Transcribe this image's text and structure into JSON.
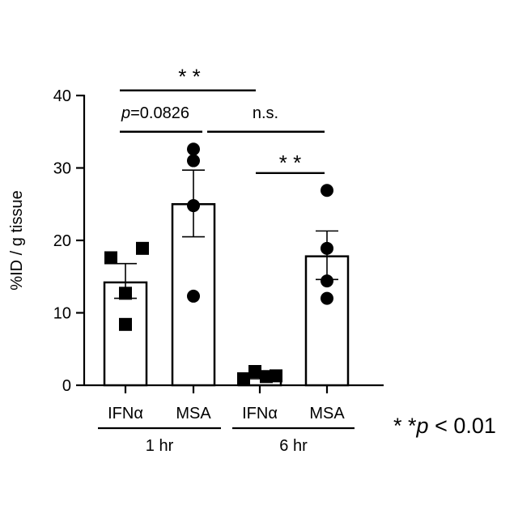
{
  "chart_data": {
    "type": "bar",
    "ylabel": "%ID / g tissue",
    "ylim": [
      0,
      40
    ],
    "yticks": [
      0,
      10,
      20,
      30,
      40
    ],
    "groups": [
      {
        "label": "1 hr",
        "categories": [
          "IFNα",
          "MSA"
        ]
      },
      {
        "label": "6 hr",
        "categories": [
          "IFNα",
          "MSA"
        ]
      }
    ],
    "bars": [
      {
        "category": "IFNα",
        "group": "1 hr",
        "mean": 14.2,
        "sem_low": 12.0,
        "sem_high": 16.8,
        "marker": "square",
        "points": [
          17.6,
          18.9,
          12.7,
          8.4
        ]
      },
      {
        "category": "MSA",
        "group": "1 hr",
        "mean": 25.0,
        "sem_low": 20.5,
        "sem_high": 29.7,
        "marker": "circle",
        "points": [
          32.6,
          31.0,
          24.8,
          12.3
        ]
      },
      {
        "category": "IFNα",
        "group": "6 hr",
        "mean": 1.2,
        "sem_low": 0.9,
        "sem_high": 1.5,
        "marker": "square",
        "points": [
          0.9,
          1.9,
          1.2,
          1.3
        ]
      },
      {
        "category": "MSA",
        "group": "6 hr",
        "mean": 17.8,
        "sem_low": 14.6,
        "sem_high": 21.3,
        "marker": "circle",
        "points": [
          26.9,
          18.9,
          14.4,
          12.0
        ]
      }
    ],
    "significance": [
      {
        "label": "* *",
        "italic_prefix": "",
        "from": 0,
        "to": 2,
        "level": 40.7
      },
      {
        "label": "=0.0826",
        "italic_prefix": "p",
        "from": 0,
        "to": 1,
        "level": 35.0
      },
      {
        "label": "n.s.",
        "italic_prefix": "",
        "from": 1,
        "to": 3,
        "level": 35.0
      },
      {
        "label": "* *",
        "italic_prefix": "",
        "from": 2,
        "to": 3,
        "level": 29.3
      }
    ],
    "footnote": {
      "stars": "* *",
      "p": "p",
      "rest": " < 0.01"
    }
  }
}
